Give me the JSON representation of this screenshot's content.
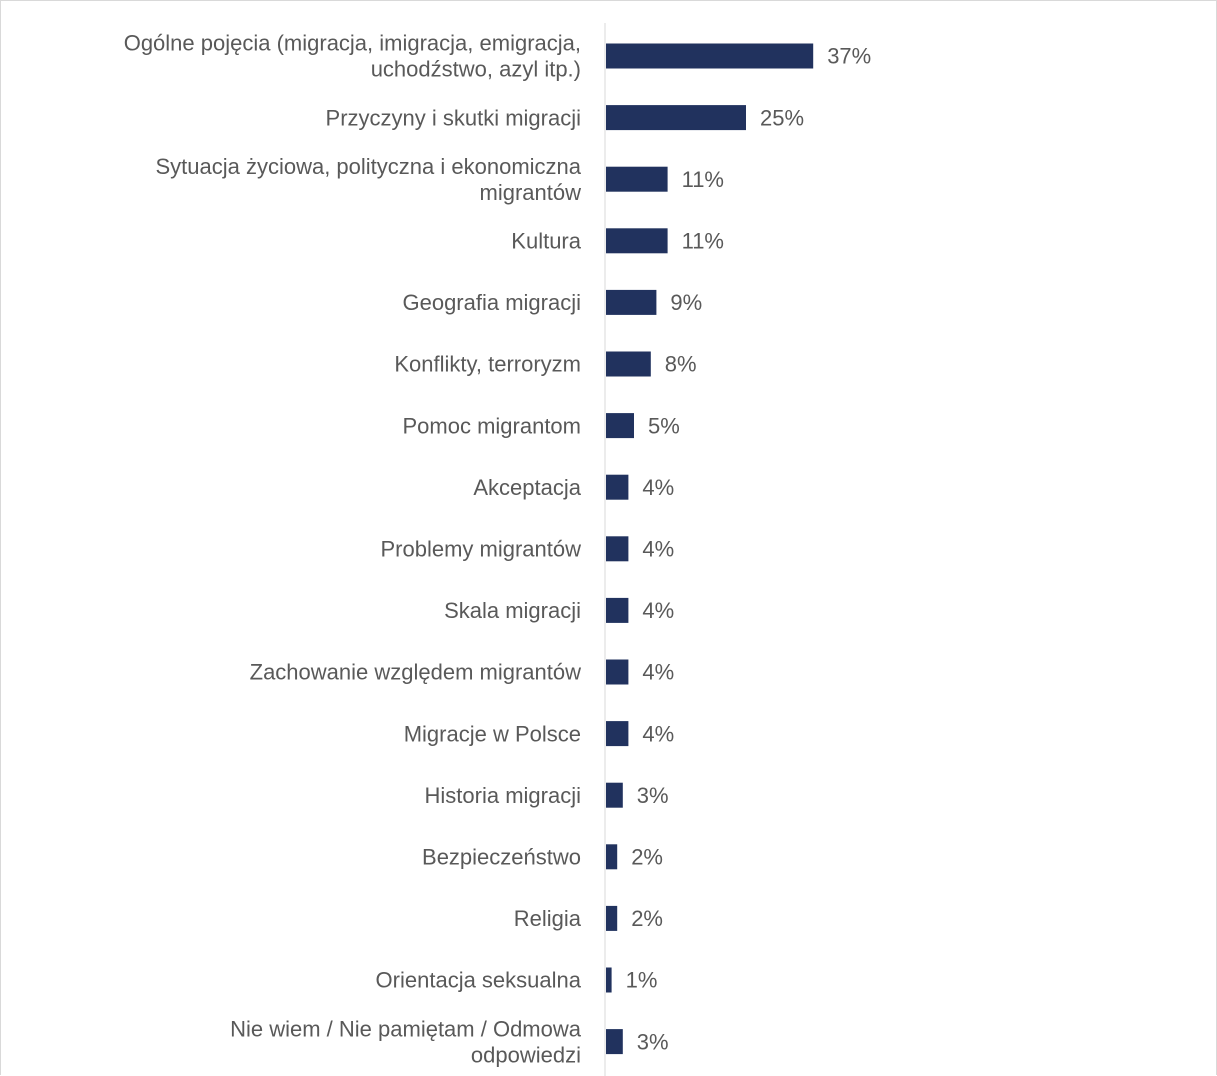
{
  "chart_data": {
    "type": "bar",
    "orientation": "horizontal",
    "categories": [
      [
        "Ogólne pojęcia (migracja, imigracja, emigracja,",
        "uchodźstwo, azyl itp.)"
      ],
      [
        "Przyczyny i skutki migracji"
      ],
      [
        "Sytuacja życiowa, polityczna i ekonomiczna",
        "migrantów"
      ],
      [
        "Kultura"
      ],
      [
        "Geografia migracji"
      ],
      [
        "Konflikty, terroryzm"
      ],
      [
        "Pomoc migrantom"
      ],
      [
        "Akceptacja"
      ],
      [
        "Problemy migrantów"
      ],
      [
        "Skala migracji"
      ],
      [
        "Zachowanie względem migrantów"
      ],
      [
        "Migracje w Polsce"
      ],
      [
        "Historia migracji"
      ],
      [
        "Bezpieczeństwo"
      ],
      [
        "Religia"
      ],
      [
        "Orientacja seksualna"
      ],
      [
        "Nie wiem / Nie pamiętam / Odmowa",
        "odpowiedzi"
      ]
    ],
    "values": [
      37,
      25,
      11,
      11,
      9,
      8,
      5,
      4,
      4,
      4,
      4,
      4,
      3,
      2,
      2,
      1,
      3
    ],
    "value_labels": [
      "37%",
      "25%",
      "11%",
      "11%",
      "9%",
      "8%",
      "5%",
      "4%",
      "4%",
      "4%",
      "4%",
      "4%",
      "3%",
      "2%",
      "2%",
      "1%",
      "3%"
    ],
    "unit": "%",
    "xlim": [
      0,
      100
    ],
    "grid": false,
    "legend": "none",
    "colors": {
      "bar": "#21325e",
      "text": "#595959",
      "axis": "#d9d9d9"
    }
  }
}
